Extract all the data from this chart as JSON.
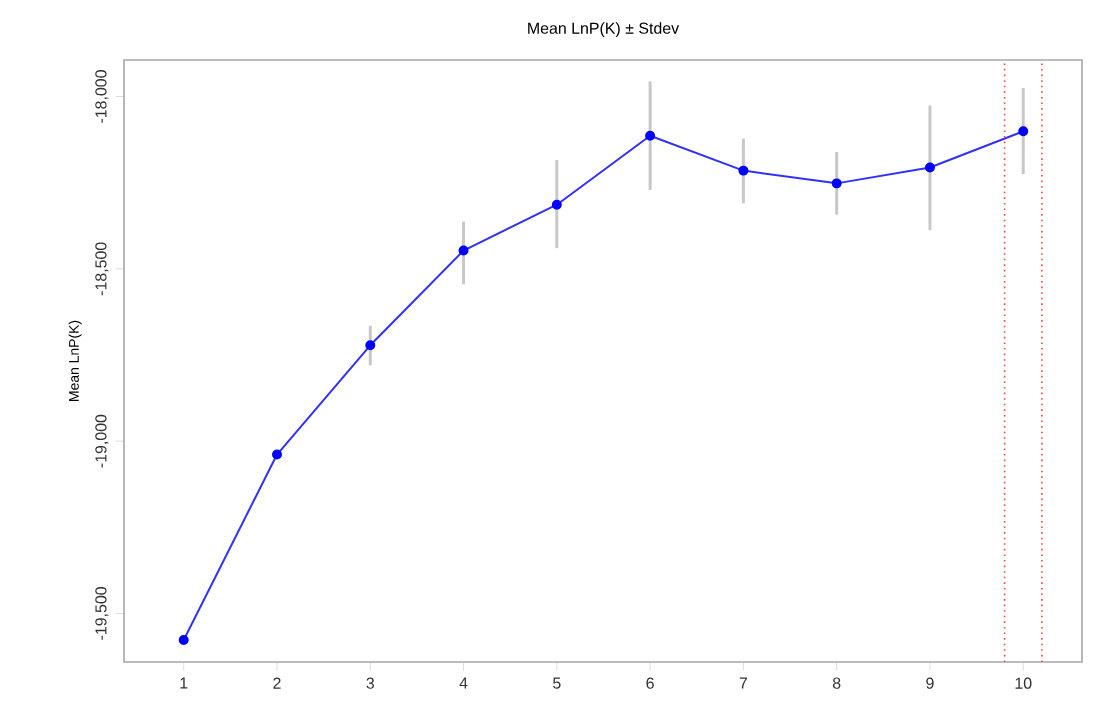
{
  "chart_data": {
    "type": "line",
    "title": "Mean LnP(K) ± Stdev",
    "ylabel": "Mean LnP(K)",
    "x": [
      1,
      2,
      3,
      4,
      5,
      6,
      7,
      8,
      9,
      10
    ],
    "series": [
      {
        "color": "#3030ff",
        "values": [
          -19577,
          -19039,
          -18722,
          -18447,
          -18314,
          -18114,
          -18215,
          -18252,
          -18206,
          -18101
        ],
        "errors": [
          null,
          null,
          [
            -18780,
            -18665
          ],
          [
            -18545,
            -18363
          ],
          [
            -18440,
            -18184
          ],
          [
            -18271,
            -17956
          ],
          [
            -18310,
            -18122
          ],
          [
            -18343,
            -18161
          ],
          [
            -18388,
            -18026
          ],
          [
            -18225,
            -17975
          ]
        ]
      }
    ],
    "xlim": [
      0.36,
      10.63
    ],
    "ylim": [
      -19641,
      -17894
    ],
    "xticks": [
      1,
      2,
      3,
      4,
      5,
      6,
      7,
      8,
      9,
      10
    ],
    "yticks": [
      {
        "value": -19500,
        "label": "-19,500"
      },
      {
        "value": -19000,
        "label": "-19,000"
      },
      {
        "value": -18500,
        "label": "-18,500"
      },
      {
        "value": -18000,
        "label": "-18,000"
      }
    ],
    "ref_lines": [
      {
        "axis": "x",
        "value": 9.8,
        "color": "#ff4040",
        "line_style": "dotted"
      },
      {
        "axis": "x",
        "value": 10.2,
        "color": "#ff4040",
        "line_style": "dotted"
      }
    ],
    "marker": "circle",
    "line_style": "solid",
    "grid": false
  }
}
